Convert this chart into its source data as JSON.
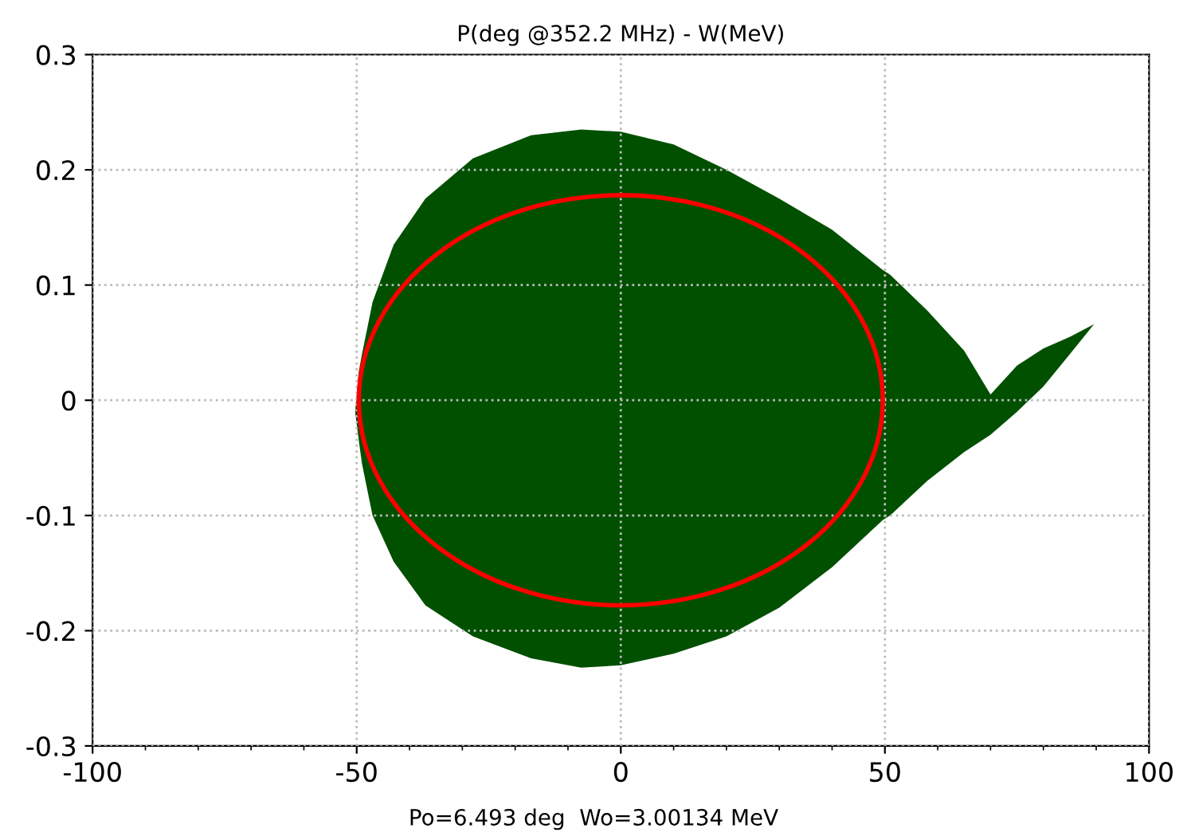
{
  "chart_data": {
    "type": "line",
    "title": "P(deg @352.2 MHz) - W(MeV)",
    "annotations": [
      "Po=6.493 deg  Wo=3.00134 MeV"
    ],
    "xlim": [
      -100,
      100
    ],
    "xticks": [
      -100,
      -50,
      0,
      50,
      100
    ],
    "ylim": [
      -0.3,
      0.3
    ],
    "yticks": [
      -0.3,
      -0.2,
      -0.1,
      0,
      0.1,
      0.2,
      0.3
    ],
    "grid": true,
    "x": [
      -50.3,
      -49.6,
      -49,
      -47,
      -43,
      -37,
      -28,
      -17,
      -7.5,
      0,
      10,
      20,
      30,
      40,
      49.6,
      51,
      58,
      65,
      70,
      75,
      80,
      85,
      89.6
    ],
    "series": [
      {
        "color": "#005000",
        "values": [
          null,
          null,
          null,
          null,
          null,
          null,
          null,
          null,
          null,
          null,
          null,
          null,
          null,
          null,
          null,
          null,
          null,
          null,
          null,
          null,
          null,
          null,
          null
        ],
        "upper": [
          -0.01,
          0.025,
          0.04,
          0.085,
          0.135,
          0.175,
          0.21,
          0.23,
          0.235,
          0.233,
          0.222,
          0.2,
          0.175,
          0.148,
          0.113,
          0.109,
          0.078,
          0.043,
          0.005,
          0.03,
          0.045,
          0.055,
          0.066
        ],
        "lower": [
          -0.01,
          -0.035,
          -0.055,
          -0.1,
          -0.14,
          -0.178,
          -0.205,
          -0.224,
          -0.232,
          -0.23,
          -0.22,
          -0.205,
          -0.18,
          -0.145,
          -0.104,
          -0.1,
          -0.07,
          -0.045,
          -0.03,
          -0.01,
          0.012,
          0.04,
          0.066
        ]
      }
    ]
  }
}
